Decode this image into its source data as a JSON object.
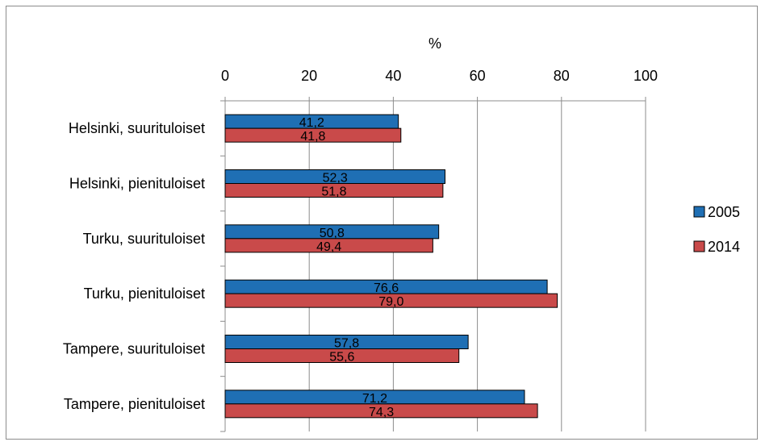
{
  "chart_data": {
    "type": "bar",
    "orientation": "horizontal",
    "title": "",
    "xlabel": "%",
    "ylabel": "",
    "xlim": [
      0,
      100
    ],
    "x_ticks": [
      0,
      20,
      40,
      60,
      80,
      100
    ],
    "x_tick_labels": [
      "0",
      "20",
      "40",
      "60",
      "80",
      "100"
    ],
    "x_axis_position": "top",
    "grid": "vertical",
    "categories": [
      "Helsinki, suurituloiset",
      "Helsinki, pienituloiset",
      "Turku, suurituloiset",
      "Turku, pienituloiset",
      "Tampere, suurituloiset",
      "Tampere, pienituloiset"
    ],
    "series": [
      {
        "name": "2005",
        "color": "#1f6fb4",
        "values": [
          41.2,
          52.3,
          50.8,
          76.6,
          57.8,
          71.2
        ],
        "labels": [
          "41,2",
          "52,3",
          "50,8",
          "76,6",
          "57,8",
          "71,2"
        ]
      },
      {
        "name": "2014",
        "color": "#c94a4a",
        "values": [
          41.8,
          51.8,
          49.4,
          79.0,
          55.6,
          74.3
        ],
        "labels": [
          "41,8",
          "51,8",
          "49,4",
          "79,0",
          "55,6",
          "74,3"
        ]
      }
    ],
    "legend_position": "right"
  }
}
